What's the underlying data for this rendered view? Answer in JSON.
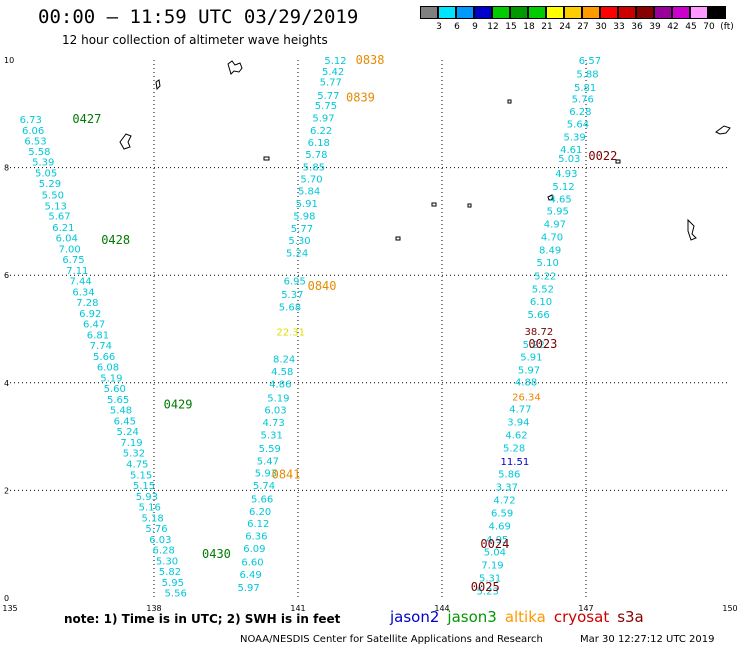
{
  "header": {
    "title": "00:00 – 11:59 UTC 03/29/2019",
    "subtitle": "12 hour collection of altimeter wave heights"
  },
  "color_scale": {
    "unit": "(ft)",
    "swatches": [
      "#808080",
      "#00e5ff",
      "#0099ff",
      "#0000cc",
      "#00cc00",
      "#009900",
      "#00cc00",
      "#ffff00",
      "#ffcc00",
      "#ff9900",
      "#ff0000",
      "#cc0000",
      "#880000",
      "#990099",
      "#cc00cc",
      "#ff99ff",
      "#000000"
    ],
    "ticks": [
      "3",
      "6",
      "9",
      "12",
      "15",
      "18",
      "21",
      "24",
      "27",
      "30",
      "33",
      "36",
      "39",
      "42",
      "45",
      "70"
    ]
  },
  "map": {
    "lon_ticks": [
      "135",
      "138",
      "141",
      "144",
      "147",
      "150"
    ],
    "lat_ticks": [
      "0",
      "2",
      "4",
      "6",
      "8",
      "10"
    ],
    "series_colors": {
      "wave": "#00c8d8",
      "jason3": "#007a00",
      "altika": "#e88a00",
      "cryosat": "#7a0000",
      "jason2": "#0000cc",
      "yellow": "#dddd00"
    }
  },
  "passes": [
    {
      "id": "pass-a",
      "times": [
        {
          "label": "0427",
          "lon": 136.3,
          "lat": 8.9,
          "series": "jason3"
        },
        {
          "label": "0428",
          "lon": 136.9,
          "lat": 6.65,
          "series": "jason3"
        },
        {
          "label": "0429",
          "lon": 138.2,
          "lat": 3.6,
          "series": "jason3"
        },
        {
          "label": "0430",
          "lon": 139.0,
          "lat": 0.82,
          "series": "jason3"
        }
      ],
      "points": [
        {
          "v": "6.73",
          "lon": 135.2,
          "lat": 8.9
        },
        {
          "v": "6.06",
          "lon": 135.25,
          "lat": 8.7
        },
        {
          "v": "6.53",
          "lon": 135.3,
          "lat": 8.5
        },
        {
          "v": "5.58",
          "lon": 135.38,
          "lat": 8.31
        },
        {
          "v": "5.39",
          "lon": 135.46,
          "lat": 8.11
        },
        {
          "v": "5.05",
          "lon": 135.52,
          "lat": 7.91
        },
        {
          "v": "5.29",
          "lon": 135.6,
          "lat": 7.71
        },
        {
          "v": "5.50",
          "lon": 135.66,
          "lat": 7.5
        },
        {
          "v": "5.13",
          "lon": 135.72,
          "lat": 7.3
        },
        {
          "v": "5.67",
          "lon": 135.8,
          "lat": 7.11
        },
        {
          "v": "6.21",
          "lon": 135.88,
          "lat": 6.9
        },
        {
          "v": "6.04",
          "lon": 135.95,
          "lat": 6.7
        },
        {
          "v": "7.00",
          "lon": 136.01,
          "lat": 6.5
        },
        {
          "v": "6.75",
          "lon": 136.09,
          "lat": 6.3
        },
        {
          "v": "7.11",
          "lon": 136.17,
          "lat": 6.1
        },
        {
          "v": "7.44",
          "lon": 136.24,
          "lat": 5.9
        },
        {
          "v": "6.34",
          "lon": 136.3,
          "lat": 5.7
        },
        {
          "v": "7.28",
          "lon": 136.38,
          "lat": 5.5
        },
        {
          "v": "6.92",
          "lon": 136.44,
          "lat": 5.3
        },
        {
          "v": "6.47",
          "lon": 136.52,
          "lat": 5.1
        },
        {
          "v": "6.81",
          "lon": 136.6,
          "lat": 4.9
        },
        {
          "v": "7.74",
          "lon": 136.66,
          "lat": 4.7
        },
        {
          "v": "5.66",
          "lon": 136.73,
          "lat": 4.5
        },
        {
          "v": "6.08",
          "lon": 136.81,
          "lat": 4.3
        },
        {
          "v": "5.19",
          "lon": 136.88,
          "lat": 4.1
        },
        {
          "v": "5.60",
          "lon": 136.95,
          "lat": 3.9
        },
        {
          "v": "5.65",
          "lon": 137.02,
          "lat": 3.7
        },
        {
          "v": "5.48",
          "lon": 137.08,
          "lat": 3.5
        },
        {
          "v": "6.45",
          "lon": 137.16,
          "lat": 3.3
        },
        {
          "v": "5.24",
          "lon": 137.22,
          "lat": 3.1
        },
        {
          "v": "7.19",
          "lon": 137.3,
          "lat": 2.9
        },
        {
          "v": "5.32",
          "lon": 137.35,
          "lat": 2.7
        },
        {
          "v": "4.75",
          "lon": 137.42,
          "lat": 2.5
        },
        {
          "v": "5.15",
          "lon": 137.5,
          "lat": 2.3
        },
        {
          "v": "5.15",
          "lon": 137.56,
          "lat": 2.1
        },
        {
          "v": "5.93",
          "lon": 137.62,
          "lat": 1.9
        },
        {
          "v": "5.16",
          "lon": 137.68,
          "lat": 1.7
        },
        {
          "v": "5.18",
          "lon": 137.74,
          "lat": 1.5
        },
        {
          "v": "5.76",
          "lon": 137.82,
          "lat": 1.3
        },
        {
          "v": "6.03",
          "lon": 137.9,
          "lat": 1.1
        },
        {
          "v": "6.28",
          "lon": 137.97,
          "lat": 0.9
        },
        {
          "v": "5.30",
          "lon": 138.04,
          "lat": 0.7
        },
        {
          "v": "5.82",
          "lon": 138.1,
          "lat": 0.5
        },
        {
          "v": "5.95",
          "lon": 138.16,
          "lat": 0.3
        },
        {
          "v": "5.56",
          "lon": 138.22,
          "lat": 0.1
        }
      ]
    },
    {
      "id": "pass-b",
      "times": [
        {
          "label": "0838",
          "lon": 142.2,
          "lat": 10.0,
          "series": "altika"
        },
        {
          "label": "0839",
          "lon": 142.0,
          "lat": 9.3,
          "series": "altika"
        },
        {
          "label": "0840",
          "lon": 141.2,
          "lat": 5.8,
          "series": "altika"
        },
        {
          "label": "0841",
          "lon": 140.45,
          "lat": 2.3,
          "series": "altika"
        }
      ],
      "points": [
        {
          "v": "5.12",
          "lon": 141.55,
          "lat": 10.0
        },
        {
          "v": "5.42",
          "lon": 141.5,
          "lat": 9.8
        },
        {
          "v": "5.77",
          "lon": 141.45,
          "lat": 9.6
        },
        {
          "v": "5.77",
          "lon": 141.4,
          "lat": 9.35
        },
        {
          "v": "5.75",
          "lon": 141.35,
          "lat": 9.16
        },
        {
          "v": "5.97",
          "lon": 141.3,
          "lat": 8.93
        },
        {
          "v": "6.22",
          "lon": 141.25,
          "lat": 8.7
        },
        {
          "v": "6.18",
          "lon": 141.2,
          "lat": 8.48
        },
        {
          "v": "5.78",
          "lon": 141.15,
          "lat": 8.25
        },
        {
          "v": "5.85",
          "lon": 141.1,
          "lat": 8.02
        },
        {
          "v": "5.70",
          "lon": 141.05,
          "lat": 7.8
        },
        {
          "v": "5.84",
          "lon": 141.0,
          "lat": 7.57
        },
        {
          "v": "5.91",
          "lon": 140.95,
          "lat": 7.34
        },
        {
          "v": "5.98",
          "lon": 140.9,
          "lat": 7.11
        },
        {
          "v": "5.77",
          "lon": 140.85,
          "lat": 6.88
        },
        {
          "v": "5.30",
          "lon": 140.8,
          "lat": 6.65
        },
        {
          "v": "5.24",
          "lon": 140.75,
          "lat": 6.42
        },
        {
          "v": "6.95",
          "lon": 140.7,
          "lat": 5.9
        },
        {
          "v": "5.37",
          "lon": 140.65,
          "lat": 5.65
        },
        {
          "v": "5.68",
          "lon": 140.6,
          "lat": 5.42
        },
        {
          "v": "22.31",
          "lon": 140.55,
          "lat": 4.95,
          "series": "yellow"
        },
        {
          "v": "8.24",
          "lon": 140.48,
          "lat": 4.45
        },
        {
          "v": "4.58",
          "lon": 140.44,
          "lat": 4.22
        },
        {
          "v": "4.86",
          "lon": 140.4,
          "lat": 3.99
        },
        {
          "v": "5.19",
          "lon": 140.36,
          "lat": 3.73
        },
        {
          "v": "6.03",
          "lon": 140.3,
          "lat": 3.5
        },
        {
          "v": "4.73",
          "lon": 140.26,
          "lat": 3.27
        },
        {
          "v": "5.31",
          "lon": 140.22,
          "lat": 3.04
        },
        {
          "v": "5.59",
          "lon": 140.18,
          "lat": 2.79
        },
        {
          "v": "5.47",
          "lon": 140.14,
          "lat": 2.56
        },
        {
          "v": "5.93",
          "lon": 140.1,
          "lat": 2.33
        },
        {
          "v": "5.74",
          "lon": 140.06,
          "lat": 2.1
        },
        {
          "v": "5.66",
          "lon": 140.02,
          "lat": 1.85
        },
        {
          "v": "6.20",
          "lon": 139.98,
          "lat": 1.62
        },
        {
          "v": "6.12",
          "lon": 139.94,
          "lat": 1.39
        },
        {
          "v": "6.36",
          "lon": 139.9,
          "lat": 1.16
        },
        {
          "v": "6.09",
          "lon": 139.86,
          "lat": 0.93
        },
        {
          "v": "6.60",
          "lon": 139.82,
          "lat": 0.68
        },
        {
          "v": "6.49",
          "lon": 139.78,
          "lat": 0.45
        },
        {
          "v": "5.97",
          "lon": 139.74,
          "lat": 0.2
        }
      ]
    },
    {
      "id": "pass-c",
      "times": [
        {
          "label": "0022",
          "lon": 147.05,
          "lat": 8.22,
          "series": "cryosat"
        },
        {
          "label": "0023",
          "lon": 145.8,
          "lat": 4.72,
          "series": "cryosat"
        },
        {
          "label": "0024",
          "lon": 144.8,
          "lat": 1.0,
          "series": "cryosat"
        },
        {
          "label": "0025",
          "lon": 144.6,
          "lat": 0.2,
          "series": "cryosat"
        }
      ],
      "points": [
        {
          "v": "6.57",
          "lon": 146.85,
          "lat": 10.0
        },
        {
          "v": "5.88",
          "lon": 146.8,
          "lat": 9.75
        },
        {
          "v": "5.81",
          "lon": 146.75,
          "lat": 9.5
        },
        {
          "v": "5.76",
          "lon": 146.7,
          "lat": 9.28
        },
        {
          "v": "6.28",
          "lon": 146.65,
          "lat": 9.05
        },
        {
          "v": "5.64",
          "lon": 146.6,
          "lat": 8.82
        },
        {
          "v": "5.39",
          "lon": 146.53,
          "lat": 8.58
        },
        {
          "v": "4.61",
          "lon": 146.46,
          "lat": 8.35
        },
        {
          "v": "5.03",
          "lon": 146.42,
          "lat": 8.18
        },
        {
          "v": "4.93",
          "lon": 146.36,
          "lat": 7.9
        },
        {
          "v": "5.12",
          "lon": 146.3,
          "lat": 7.66
        },
        {
          "v": "4.65",
          "lon": 146.24,
          "lat": 7.43
        },
        {
          "v": "5.95",
          "lon": 146.18,
          "lat": 7.2
        },
        {
          "v": "4.97",
          "lon": 146.12,
          "lat": 6.96
        },
        {
          "v": "4.70",
          "lon": 146.06,
          "lat": 6.72
        },
        {
          "v": "8.49",
          "lon": 146.02,
          "lat": 6.48
        },
        {
          "v": "5.10",
          "lon": 145.97,
          "lat": 6.25
        },
        {
          "v": "5.22",
          "lon": 145.92,
          "lat": 5.99
        },
        {
          "v": "5.52",
          "lon": 145.87,
          "lat": 5.75
        },
        {
          "v": "6.10",
          "lon": 145.83,
          "lat": 5.52
        },
        {
          "v": "5.66",
          "lon": 145.78,
          "lat": 5.28
        },
        {
          "v": "38.72",
          "lon": 145.72,
          "lat": 4.96,
          "series": "cryosat"
        },
        {
          "v": "5.22",
          "lon": 145.68,
          "lat": 4.72
        },
        {
          "v": "5.91",
          "lon": 145.63,
          "lat": 4.49
        },
        {
          "v": "5.97",
          "lon": 145.58,
          "lat": 4.25
        },
        {
          "v": "4.88",
          "lon": 145.52,
          "lat": 4.02
        },
        {
          "v": "26.34",
          "lon": 145.46,
          "lat": 3.75,
          "series": "altika"
        },
        {
          "v": "4.77",
          "lon": 145.4,
          "lat": 3.52
        },
        {
          "v": "3.94",
          "lon": 145.36,
          "lat": 3.28
        },
        {
          "v": "4.62",
          "lon": 145.32,
          "lat": 3.04
        },
        {
          "v": "5.28",
          "lon": 145.27,
          "lat": 2.8
        },
        {
          "v": "11.51",
          "lon": 145.22,
          "lat": 2.55,
          "series": "jason2"
        },
        {
          "v": "5.86",
          "lon": 145.17,
          "lat": 2.31
        },
        {
          "v": "3.37",
          "lon": 145.12,
          "lat": 2.07
        },
        {
          "v": "4.72",
          "lon": 145.07,
          "lat": 1.83
        },
        {
          "v": "6.59",
          "lon": 145.02,
          "lat": 1.59
        },
        {
          "v": "4.69",
          "lon": 144.97,
          "lat": 1.35
        },
        {
          "v": "4.95",
          "lon": 144.92,
          "lat": 1.1
        },
        {
          "v": "5.04",
          "lon": 144.87,
          "lat": 0.86
        },
        {
          "v": "7.19",
          "lon": 144.82,
          "lat": 0.62
        },
        {
          "v": "5.31",
          "lon": 144.77,
          "lat": 0.38
        },
        {
          "v": "5.23",
          "lon": 144.72,
          "lat": 0.14
        }
      ]
    }
  ],
  "footer": {
    "note": "note:  1) Time is in UTC;  2) SWH is in feet",
    "legend": [
      {
        "name": "jason2",
        "color": "#0000cc"
      },
      {
        "name": "jason3",
        "color": "#009900"
      },
      {
        "name": "altika",
        "color": "#ff9900"
      },
      {
        "name": "cryosat",
        "color": "#cc0000"
      },
      {
        "name": "s3a",
        "color": "#880000"
      }
    ],
    "credit": "NOAA/NESDIS Center for Satellite Applications and Research",
    "timestamp": "Mar 30 12:27:12 UTC 2019"
  }
}
